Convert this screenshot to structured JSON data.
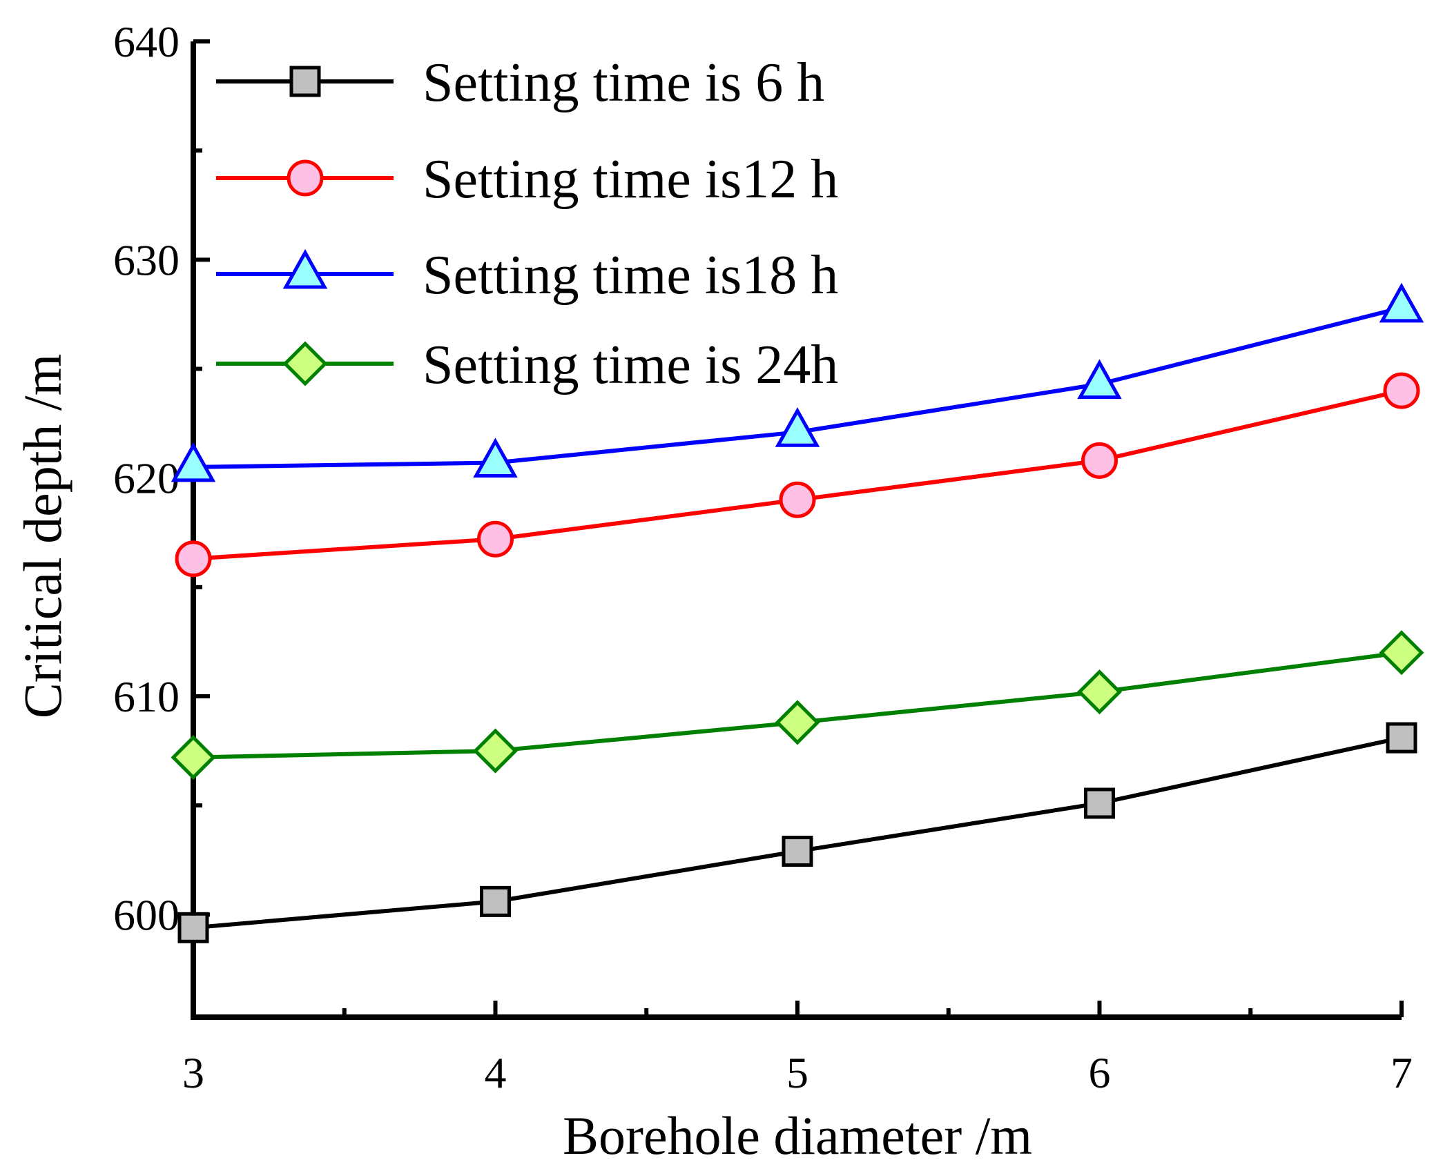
{
  "chart_data": {
    "type": "line",
    "title": "",
    "xlabel": "Borehole diameter /m",
    "ylabel": "Critical depth /m",
    "x": [
      3,
      4,
      5,
      6,
      7
    ],
    "xlim": [
      3,
      7
    ],
    "ylim": [
      595.3,
      640
    ],
    "xticks": [
      "3",
      "4",
      "5",
      "6",
      "7"
    ],
    "yticks": [
      "600",
      "610",
      "620",
      "630",
      "640"
    ],
    "legend_position": "top-left",
    "grid": false,
    "series": [
      {
        "name": "Setting time is 6 h",
        "values": [
          599.4,
          600.6,
          602.9,
          605.1,
          608.1
        ],
        "color": "#000000",
        "marker": "square",
        "marker_fill": "#c0c0c0"
      },
      {
        "name": "Setting time is12 h",
        "values": [
          616.3,
          617.2,
          619.0,
          620.8,
          624.0
        ],
        "color": "#ff0000",
        "marker": "circle",
        "marker_fill": "#ffc0e6"
      },
      {
        "name": "Setting time is18 h",
        "values": [
          620.5,
          620.7,
          622.1,
          624.3,
          627.8
        ],
        "color": "#0000ff",
        "marker": "triangle",
        "marker_fill": "#99ffff"
      },
      {
        "name": "Setting time is 24h",
        "values": [
          607.2,
          607.5,
          608.8,
          610.2,
          612.0
        ],
        "color": "#008000",
        "marker": "diamond",
        "marker_fill": "#ccff80"
      }
    ]
  }
}
